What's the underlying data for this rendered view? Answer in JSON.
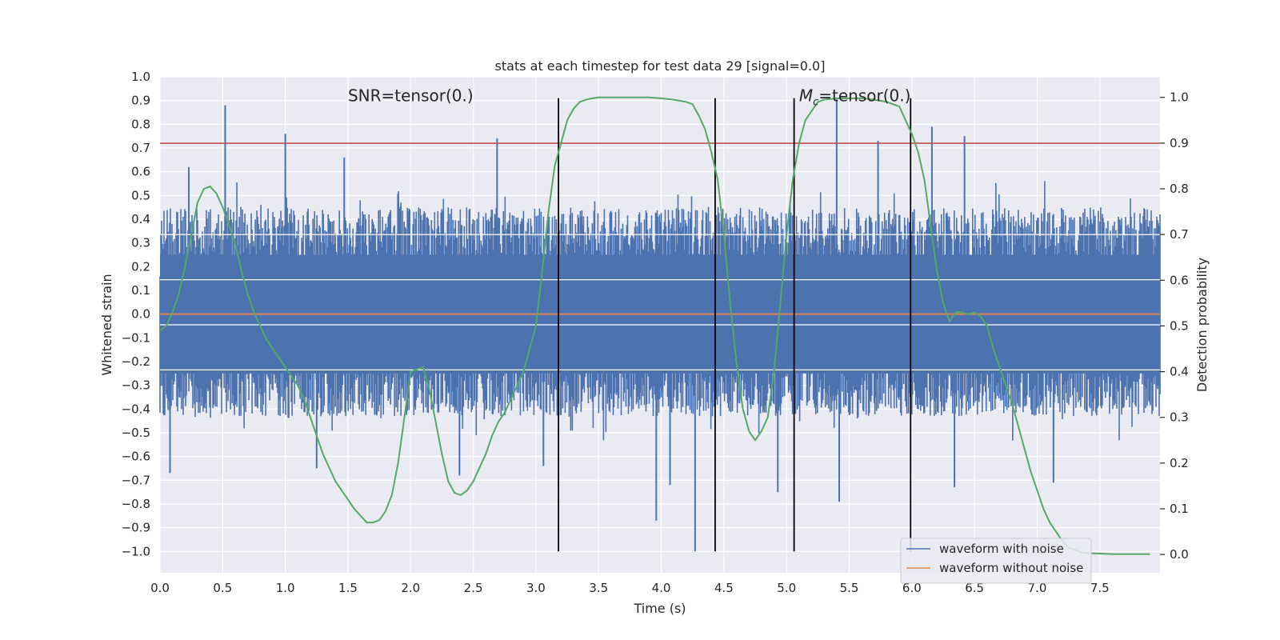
{
  "chart_data": {
    "type": "line",
    "title": "stats at each timestep for test data 29 [signal=0.0]",
    "xlabel": "Time (s)",
    "ylabel": "Whitened strain",
    "y2label": "Detection probability",
    "xlim": [
      0.0,
      7.98
    ],
    "ylim": [
      -1.09,
      1.0
    ],
    "y2lim": [
      -0.04,
      1.045
    ],
    "xticks": [
      "0.0",
      "0.5",
      "1.0",
      "1.5",
      "2.0",
      "2.5",
      "3.0",
      "3.5",
      "4.0",
      "4.5",
      "5.0",
      "5.5",
      "6.0",
      "6.5",
      "7.0",
      "7.5"
    ],
    "yticks": [
      "1.0",
      "0.9",
      "0.8",
      "0.7",
      "0.6",
      "0.5",
      "0.4",
      "0.3",
      "0.2",
      "0.1",
      "0.0",
      "−0.1",
      "−0.2",
      "−0.3",
      "−0.4",
      "−0.5",
      "−0.6",
      "−0.7",
      "−0.8",
      "−0.9",
      "−1.0"
    ],
    "y2ticks": [
      "1.0",
      "0.9",
      "0.8",
      "0.7",
      "0.6",
      "0.5",
      "0.4",
      "0.3",
      "0.2",
      "0.1",
      "0.0"
    ],
    "grid": true,
    "legend_position": "lower-right",
    "annotations": {
      "snr": {
        "text": "SNR=tensor(0.)",
        "x": 1.5,
        "y": 0.92
      },
      "mc": {
        "prefix": "M",
        "sub": "c",
        "suffix": "=tensor(0.)",
        "x": 5.1,
        "y": 0.92
      }
    },
    "threshold_line": {
      "y": 0.72,
      "color": "#c44e52"
    },
    "vertical_lines": [
      3.18,
      4.43,
      5.06,
      5.99
    ],
    "vertical_line_range": [
      -1.0,
      0.91
    ],
    "white_hlines": [
      0.335,
      0.145,
      -0.045,
      -0.235
    ],
    "series": [
      {
        "name": "waveform with noise",
        "color": "#4c72b0",
        "kind": "noise",
        "envelope_upper": 0.45,
        "envelope_lower": -0.43,
        "spikes": [
          {
            "x": 0.52,
            "y": 0.88
          },
          {
            "x": 1.0,
            "y": 0.76
          },
          {
            "x": 0.23,
            "y": 0.62
          },
          {
            "x": 0.08,
            "y": -0.67
          },
          {
            "x": 1.47,
            "y": 0.66
          },
          {
            "x": 2.39,
            "y": -0.68
          },
          {
            "x": 3.96,
            "y": -0.87
          },
          {
            "x": 4.27,
            "y": -1.0
          },
          {
            "x": 4.07,
            "y": -0.72
          },
          {
            "x": 5.4,
            "y": 0.91
          },
          {
            "x": 5.42,
            "y": -0.79
          },
          {
            "x": 6.16,
            "y": 0.79
          },
          {
            "x": 6.42,
            "y": 0.75
          },
          {
            "x": 6.34,
            "y": -0.73
          },
          {
            "x": 5.73,
            "y": 0.73
          },
          {
            "x": 4.93,
            "y": -0.75
          },
          {
            "x": 7.13,
            "y": -0.71
          },
          {
            "x": 2.69,
            "y": 0.74
          },
          {
            "x": 1.25,
            "y": -0.65
          },
          {
            "x": 3.06,
            "y": -0.64
          }
        ]
      },
      {
        "name": "waveform without noise",
        "color": "#dd8452",
        "kind": "flat",
        "y": 0.0
      }
    ],
    "probability_series": {
      "name": "",
      "color": "#55a868",
      "x": [
        0.0,
        0.05,
        0.1,
        0.15,
        0.2,
        0.25,
        0.3,
        0.35,
        0.4,
        0.45,
        0.5,
        0.55,
        0.6,
        0.65,
        0.7,
        0.75,
        0.8,
        0.85,
        0.9,
        0.95,
        1.0,
        1.05,
        1.1,
        1.15,
        1.2,
        1.25,
        1.3,
        1.35,
        1.4,
        1.45,
        1.5,
        1.55,
        1.6,
        1.65,
        1.7,
        1.75,
        1.8,
        1.85,
        1.9,
        1.95,
        2.0,
        2.05,
        2.1,
        2.15,
        2.2,
        2.25,
        2.3,
        2.35,
        2.4,
        2.45,
        2.5,
        2.55,
        2.6,
        2.65,
        2.7,
        2.75,
        2.8,
        2.85,
        2.9,
        2.95,
        3.0,
        3.05,
        3.1,
        3.15,
        3.2,
        3.25,
        3.3,
        3.35,
        3.4,
        3.45,
        3.5,
        3.6,
        3.7,
        3.8,
        3.9,
        4.0,
        4.1,
        4.2,
        4.25,
        4.3,
        4.35,
        4.4,
        4.45,
        4.5,
        4.55,
        4.6,
        4.65,
        4.7,
        4.75,
        4.8,
        4.85,
        4.9,
        4.95,
        5.0,
        5.05,
        5.1,
        5.15,
        5.2,
        5.25,
        5.3,
        5.4,
        5.5,
        5.6,
        5.7,
        5.8,
        5.85,
        5.9,
        5.95,
        6.0,
        6.05,
        6.1,
        6.15,
        6.2,
        6.25,
        6.3,
        6.35,
        6.4,
        6.45,
        6.5,
        6.55,
        6.6,
        6.65,
        6.7,
        6.75,
        6.8,
        6.85,
        6.9,
        6.95,
        7.0,
        7.05,
        7.1,
        7.15,
        7.2,
        7.25,
        7.3,
        7.35,
        7.4,
        7.5,
        7.6,
        7.7,
        7.8,
        7.9
      ],
      "values": [
        0.49,
        0.5,
        0.53,
        0.57,
        0.63,
        0.7,
        0.77,
        0.8,
        0.805,
        0.79,
        0.76,
        0.72,
        0.68,
        0.62,
        0.57,
        0.53,
        0.5,
        0.47,
        0.45,
        0.43,
        0.41,
        0.39,
        0.37,
        0.34,
        0.3,
        0.26,
        0.22,
        0.19,
        0.16,
        0.14,
        0.12,
        0.1,
        0.085,
        0.07,
        0.07,
        0.075,
        0.095,
        0.13,
        0.2,
        0.3,
        0.4,
        0.405,
        0.41,
        0.36,
        0.29,
        0.22,
        0.16,
        0.135,
        0.13,
        0.14,
        0.16,
        0.19,
        0.22,
        0.26,
        0.29,
        0.31,
        0.34,
        0.37,
        0.4,
        0.45,
        0.5,
        0.62,
        0.75,
        0.85,
        0.9,
        0.95,
        0.975,
        0.99,
        0.995,
        0.998,
        1.0,
        1.0,
        1.0,
        1.0,
        1.0,
        0.998,
        0.995,
        0.99,
        0.985,
        0.96,
        0.93,
        0.88,
        0.82,
        0.7,
        0.55,
        0.42,
        0.32,
        0.27,
        0.25,
        0.27,
        0.3,
        0.4,
        0.55,
        0.7,
        0.82,
        0.9,
        0.95,
        0.97,
        0.99,
        0.995,
        0.998,
        0.998,
        0.998,
        0.995,
        0.99,
        0.985,
        0.98,
        0.95,
        0.92,
        0.88,
        0.82,
        0.72,
        0.62,
        0.55,
        0.51,
        0.53,
        0.53,
        0.525,
        0.53,
        0.52,
        0.5,
        0.45,
        0.41,
        0.37,
        0.33,
        0.28,
        0.23,
        0.18,
        0.14,
        0.1,
        0.07,
        0.05,
        0.03,
        0.015,
        0.01,
        0.005,
        0.003,
        0.002,
        0.001,
        0.001,
        0.001,
        0.001
      ]
    }
  }
}
